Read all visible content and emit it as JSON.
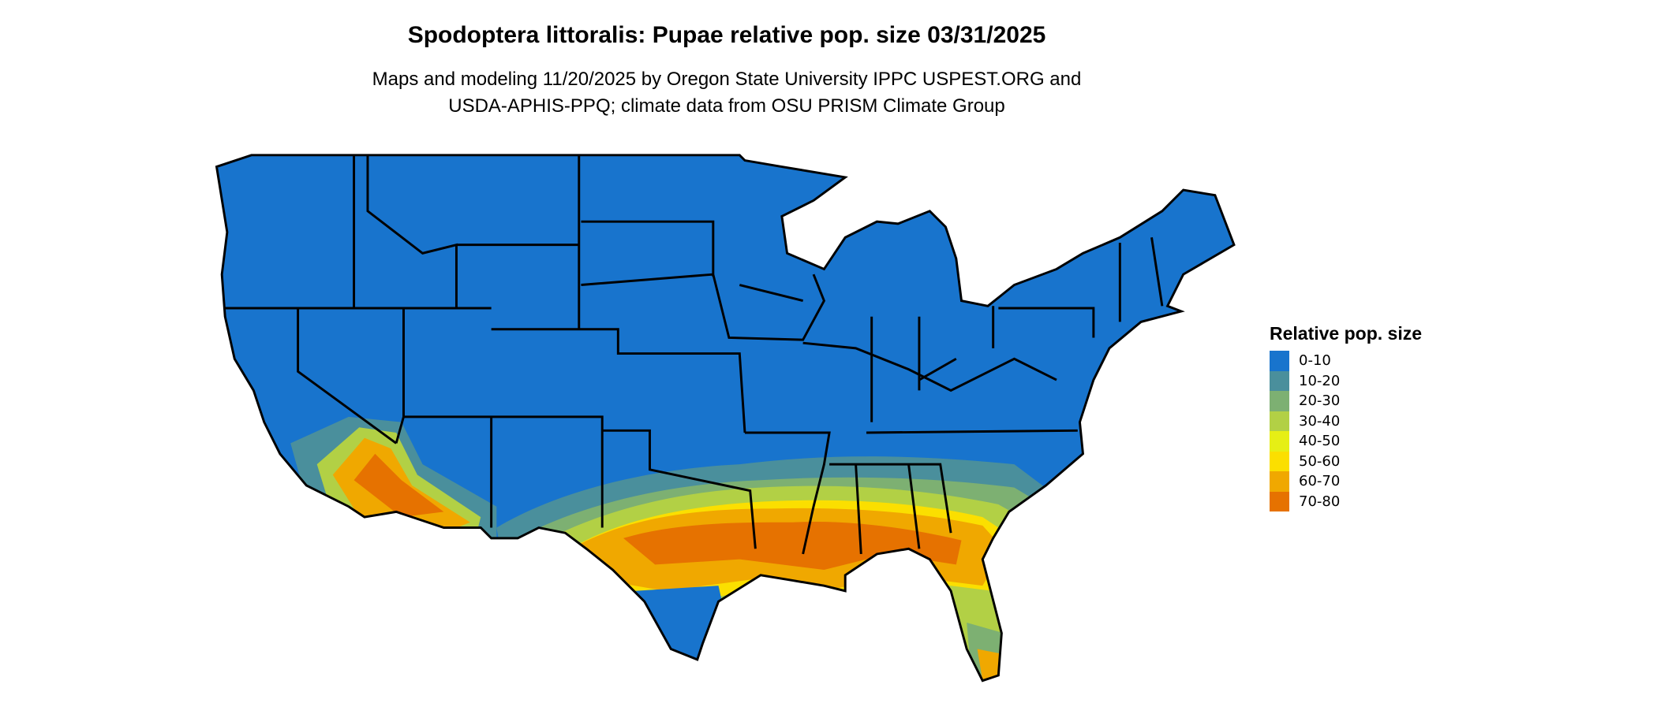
{
  "title": "Spodoptera littoralis: Pupae relative pop. size 03/31/2025",
  "subtitle_lines": [
    "Maps and modeling 11/20/2025 by Oregon State University IPPC USPEST.ORG and",
    "USDA-APHIS-PPQ; climate data from OSU PRISM Climate Group"
  ],
  "map": {
    "region": "Contiguous United States",
    "base_color": "#1874CD",
    "border_color": "#000000"
  },
  "legend": {
    "title": "Relative pop. size",
    "placement": "right",
    "items": [
      {
        "label": "0-10",
        "color": "#1874CD"
      },
      {
        "label": "10-20",
        "color": "#4A8F9C"
      },
      {
        "label": "20-30",
        "color": "#7DB072"
      },
      {
        "label": "30-40",
        "color": "#B2D045"
      },
      {
        "label": "40-50",
        "color": "#E6EF15"
      },
      {
        "label": "50-60",
        "color": "#FBDF00"
      },
      {
        "label": "60-70",
        "color": "#F0A800"
      },
      {
        "label": "70-80",
        "color": "#E67200"
      }
    ]
  }
}
